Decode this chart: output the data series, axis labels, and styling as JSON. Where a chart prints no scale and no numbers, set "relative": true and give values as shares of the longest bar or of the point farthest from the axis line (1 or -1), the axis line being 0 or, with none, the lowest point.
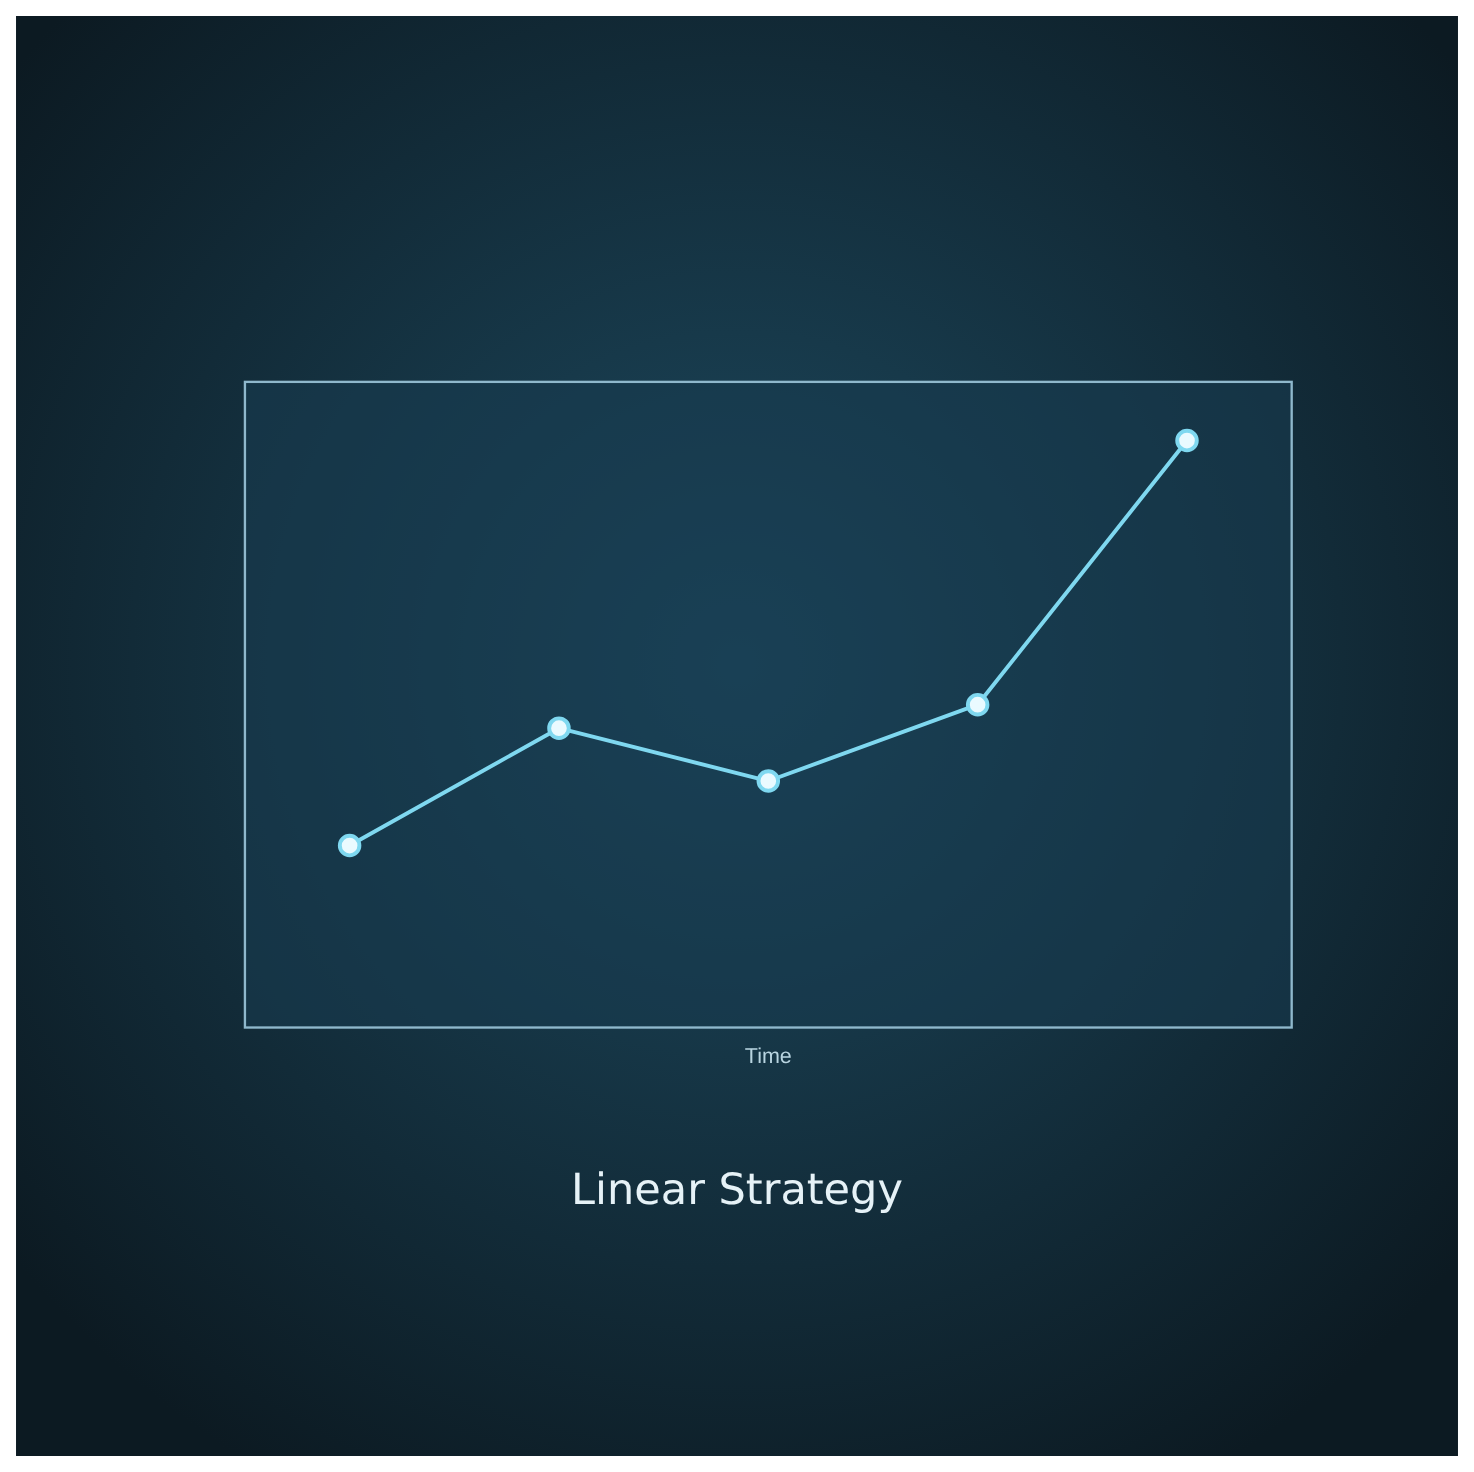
{
  "chart_data": {
    "type": "line",
    "title": "Linear Strategy",
    "xlabel": "Time",
    "relative": true,
    "categories": [
      null,
      null,
      null,
      null,
      null
    ],
    "series": [
      {
        "color": "#7fd8f0",
        "values": [
          0.31,
          0.51,
          0.42,
          0.55,
          1
        ]
      }
    ],
    "marker": "circle",
    "line_style": "solid"
  }
}
